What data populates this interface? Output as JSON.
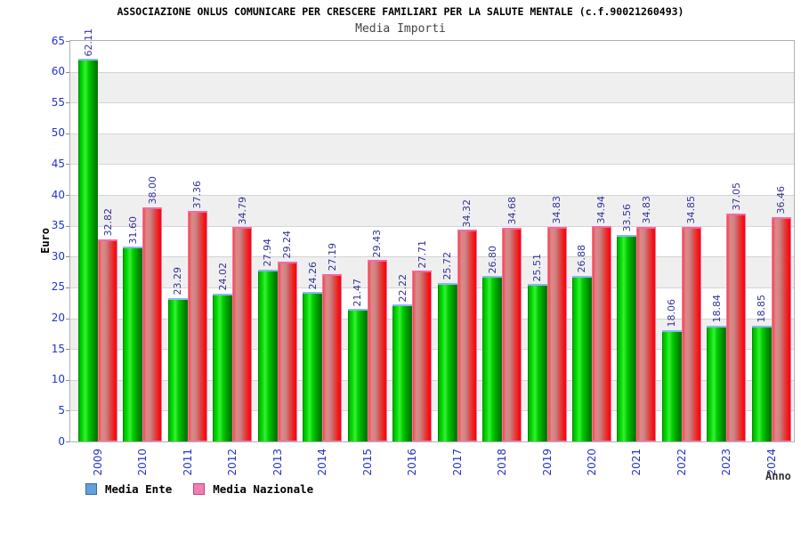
{
  "header": {
    "title": "ASSOCIAZIONE ONLUS COMUNICARE PER CRESCERE FAMILIARI PER LA SALUTE MENTALE (c.f.90021260493)",
    "subtitle": "Media Importi"
  },
  "chart_data": {
    "type": "bar",
    "title": "Media Importi",
    "xlabel": "Anno",
    "ylabel": "Euro",
    "ylim": [
      0,
      65
    ],
    "ytick_step": 5,
    "grid": true,
    "legend_position": "bottom-left",
    "categories": [
      "2009",
      "2010",
      "2011",
      "2012",
      "2013",
      "2014",
      "2015",
      "2016",
      "2017",
      "2018",
      "2019",
      "2020",
      "2021",
      "2022",
      "2023",
      "2024"
    ],
    "series": [
      {
        "name": "Media Ente",
        "bar_style": "green",
        "legend_color": "#66a0d8",
        "values": [
          62.11,
          31.6,
          23.29,
          24.02,
          27.94,
          24.26,
          21.47,
          22.22,
          25.72,
          26.8,
          25.51,
          26.88,
          33.56,
          18.06,
          18.84,
          18.85
        ],
        "labels": [
          "62.11",
          "31.60",
          "23.29",
          "24.02",
          "27.94",
          "24.26",
          "21.47",
          "22.22",
          "25.72",
          "26.80",
          "25.51",
          "26.88",
          "33.56",
          "18.06",
          "18.84",
          "18.85"
        ]
      },
      {
        "name": "Media Nazionale",
        "bar_style": "red",
        "legend_color": "#f080b0",
        "values": [
          32.82,
          38.0,
          37.36,
          34.79,
          29.24,
          27.19,
          29.43,
          27.71,
          34.32,
          34.68,
          34.83,
          34.94,
          34.83,
          34.85,
          37.05,
          36.46
        ],
        "labels": [
          "32.82",
          "38.00",
          "37.36",
          "34.79",
          "29.24",
          "27.19",
          "29.43",
          "27.71",
          "34.32",
          "34.68",
          "34.83",
          "34.94",
          "34.83",
          "34.85",
          "37.05",
          "36.46"
        ]
      }
    ],
    "colors": {
      "bar_green": "#00cc00",
      "bar_red": "#ee2222",
      "bar_green_cap": "#8ab8f0",
      "bar_red_cap": "#f567a8",
      "axis_tick_label": "#2233cc",
      "value_label": "#333399",
      "band_gray": "#efefef",
      "grid_line": "#d4d4d4"
    }
  }
}
